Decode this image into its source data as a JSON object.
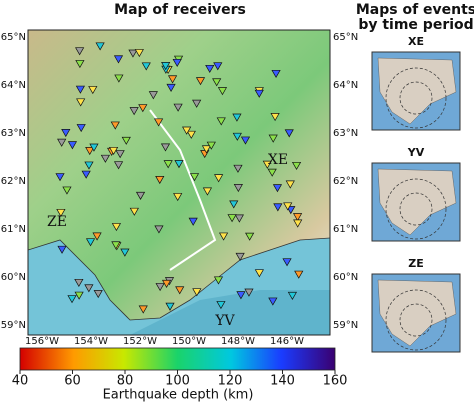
{
  "title": "Map of receivers",
  "side_title": [
    "Maps of events",
    "by time period"
  ],
  "latitude_labels": [
    "65°N",
    "64°N",
    "63°N",
    "62°N",
    "61°N",
    "60°N",
    "59°N"
  ],
  "longitude_labels": [
    "156°W",
    "154°W",
    "152°W",
    "150°W",
    "148°W",
    "146°W"
  ],
  "annotations": [
    "XE",
    "ZE",
    "YV"
  ],
  "insets": [
    {
      "title": "XE"
    },
    {
      "title": "YV"
    },
    {
      "title": "ZE"
    }
  ],
  "colorbar": {
    "label": "Earthquake depth (km)",
    "range": [
      40,
      160
    ],
    "ticks": [
      40,
      60,
      80,
      100,
      120,
      140,
      160
    ]
  }
}
